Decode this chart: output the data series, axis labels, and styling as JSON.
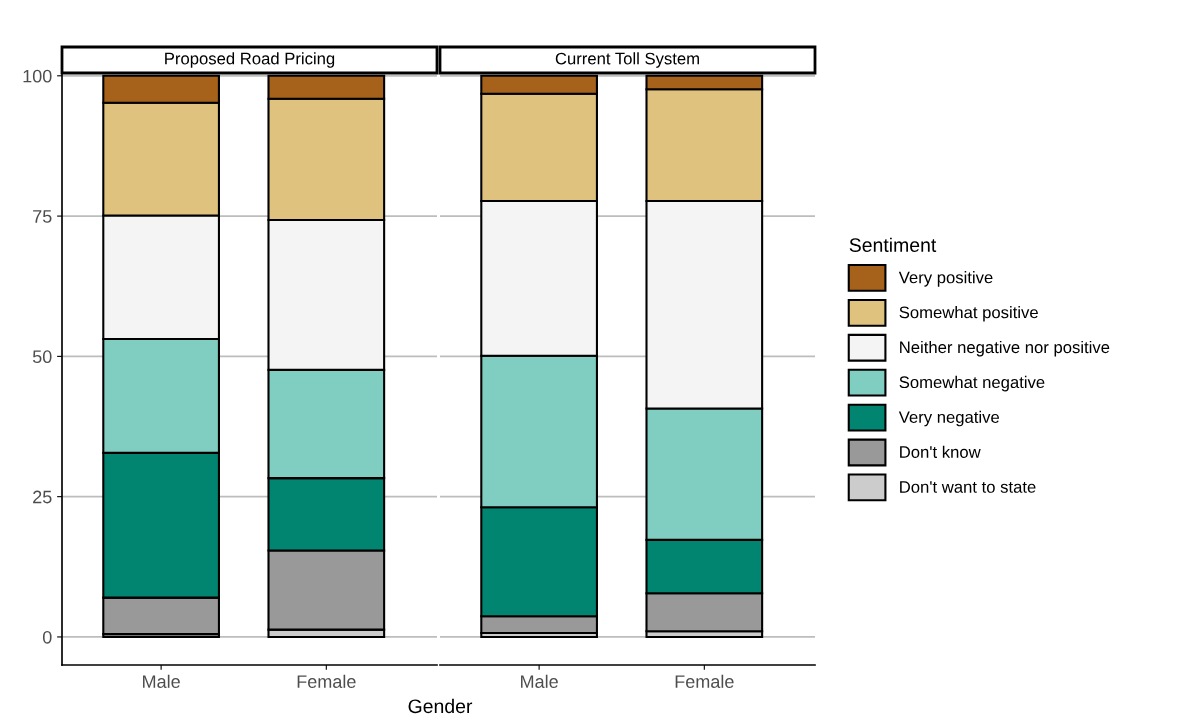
{
  "chart_data": [
    {
      "type": "bar",
      "title": "Proposed Road Pricing",
      "xlabel": "Gender",
      "categories": [
        "Male",
        "Female"
      ],
      "stacked": true,
      "ylim": [
        -5,
        100.5
      ],
      "yticks": [
        0,
        25,
        50,
        75,
        100
      ],
      "grid": "y",
      "series": [
        {
          "color": "#cccccc",
          "values": [
            0.5,
            1.3
          ]
        },
        {
          "color": "#999999",
          "values": [
            6.5,
            14.1
          ]
        },
        {
          "color": "#018571",
          "values": [
            25.8,
            12.9
          ]
        },
        {
          "color": "#80cdc1",
          "values": [
            20.3,
            19.3
          ]
        },
        {
          "color": "#f4f4f4",
          "values": [
            22.0,
            26.7
          ]
        },
        {
          "color": "#dfc27d",
          "values": [
            20.1,
            21.6
          ]
        },
        {
          "color": "#a6611a",
          "values": [
            4.8,
            4.1
          ]
        }
      ]
    },
    {
      "type": "bar",
      "title": "Current Toll System",
      "categories": [
        "Male",
        "Female"
      ],
      "stacked": true,
      "ylim": [
        -5,
        100.5
      ],
      "yticks": [
        0,
        25,
        50,
        75,
        100
      ],
      "grid": "y",
      "tick_labels": "x",
      "legend": "right",
      "legend_title": "Sentiment",
      "series": [
        {
          "name": "Don't want to state",
          "color": "#cccccc",
          "values": [
            0.7,
            1.0
          ]
        },
        {
          "name": "Don't know",
          "color": "#999999",
          "values": [
            3.0,
            6.8
          ]
        },
        {
          "name": "Very negative",
          "color": "#018571",
          "values": [
            19.4,
            9.5
          ]
        },
        {
          "name": "Somewhat negative",
          "color": "#80cdc1",
          "values": [
            27.0,
            23.4
          ]
        },
        {
          "name": "Neither negative nor positive",
          "color": "#f4f4f4",
          "values": [
            27.6,
            37.0
          ]
        },
        {
          "name": "Somewhat positive",
          "color": "#dfc27d",
          "values": [
            19.1,
            19.9
          ]
        },
        {
          "name": "Very positive",
          "color": "#a6611a",
          "values": [
            3.2,
            2.4
          ]
        }
      ]
    }
  ]
}
